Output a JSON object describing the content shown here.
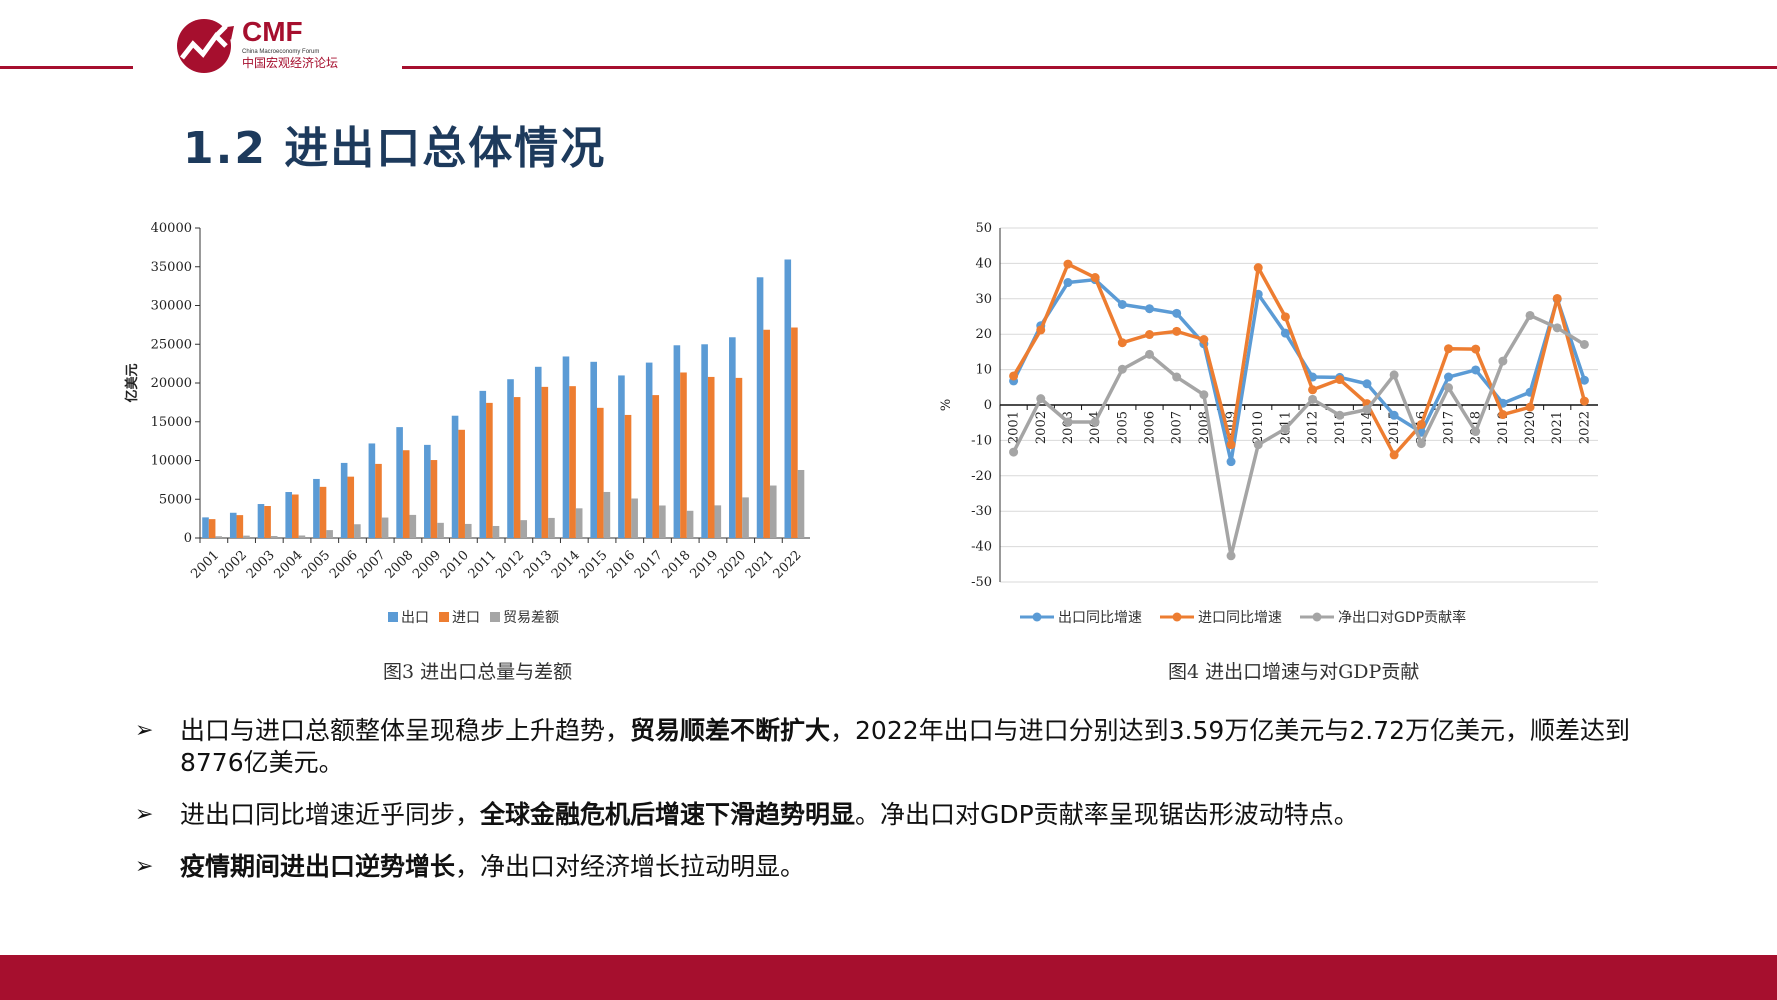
{
  "header": {
    "logo_text": "CMF",
    "logo_subtext": "China Macroeconomy Forum",
    "logo_cn": "中国宏观经济论坛"
  },
  "title": "1.2 进出口总体情况",
  "colors": {
    "brand": "#a60f2e",
    "title": "#1d3a5c",
    "export": "#5b9bd5",
    "import": "#ed7d31",
    "balance": "#a5a5a5"
  },
  "chart_data": [
    {
      "type": "bar",
      "ylabel": "亿美元",
      "ylim": [
        0,
        40000
      ],
      "yticks": [
        "0",
        "5000",
        "10000",
        "15000",
        "20000",
        "25000",
        "30000",
        "35000",
        "40000"
      ],
      "categories": [
        "2001",
        "2002",
        "2003",
        "2004",
        "2005",
        "2006",
        "2007",
        "2008",
        "2009",
        "2010",
        "2011",
        "2012",
        "2013",
        "2014",
        "2015",
        "2016",
        "2017",
        "2018",
        "2019",
        "2020",
        "2021",
        "2022"
      ],
      "series": [
        {
          "name": "出口",
          "color": "#5b9bd5",
          "values": [
            2661,
            3256,
            4382,
            5933,
            7620,
            9689,
            12200,
            14307,
            12016,
            15778,
            18984,
            20487,
            22090,
            23423,
            22735,
            20976,
            22633,
            24867,
            24995,
            25900,
            33640,
            35936
          ]
        },
        {
          "name": "进口",
          "color": "#ed7d31",
          "values": [
            2436,
            2952,
            4128,
            5612,
            6600,
            7915,
            9561,
            11326,
            10059,
            13962,
            17435,
            18184,
            19500,
            19592,
            16796,
            15879,
            18438,
            21357,
            20784,
            20660,
            26870,
            27160
          ]
        },
        {
          "name": "贸易差额",
          "color": "#a5a5a5",
          "values": [
            225,
            304,
            255,
            321,
            1020,
            1775,
            2639,
            2981,
            1957,
            1815,
            1549,
            2303,
            2590,
            3831,
            5939,
            5097,
            4195,
            3510,
            4211,
            5240,
            6770,
            8776
          ]
        }
      ],
      "legend": "bottom",
      "caption": "图3 进出口总量与差额"
    },
    {
      "type": "line",
      "ylabel": "%",
      "ylim": [
        -50,
        50
      ],
      "yticks": [
        "-50",
        "-40",
        "-30",
        "-20",
        "-10",
        "0",
        "10",
        "20",
        "30",
        "40",
        "50"
      ],
      "categories": [
        "2001",
        "2002",
        "2003",
        "2004",
        "2005",
        "2006",
        "2007",
        "2008",
        "2009",
        "2010",
        "2011",
        "2012",
        "2013",
        "2014",
        "2015",
        "2016",
        "2017",
        "2018",
        "2019",
        "2020",
        "2021",
        "2022"
      ],
      "series": [
        {
          "name": "出口同比增速",
          "color": "#5b9bd5",
          "values": [
            6.8,
            22.4,
            34.6,
            35.4,
            28.4,
            27.2,
            25.9,
            17.3,
            -16.0,
            31.3,
            20.3,
            7.9,
            7.8,
            6.0,
            -2.9,
            -7.7,
            7.9,
            9.9,
            0.5,
            3.6,
            29.9,
            7.0
          ]
        },
        {
          "name": "进口同比增速",
          "color": "#ed7d31",
          "values": [
            8.2,
            21.2,
            39.8,
            36.0,
            17.6,
            19.9,
            20.8,
            18.5,
            -11.2,
            38.8,
            24.9,
            4.3,
            7.2,
            0.4,
            -14.1,
            -5.5,
            15.9,
            15.8,
            -2.7,
            -0.6,
            30.1,
            1.1
          ]
        },
        {
          "name": "净出口对GDP贡献率",
          "color": "#a5a5a5",
          "values": [
            -13.3,
            1.8,
            -4.8,
            -4.8,
            10.1,
            14.3,
            7.9,
            2.9,
            -42.6,
            -11.2,
            -6.7,
            1.6,
            -2.9,
            -1.3,
            8.5,
            -10.9,
            4.9,
            -7.5,
            12.4,
            25.3,
            21.8,
            17.1
          ]
        }
      ],
      "legend": "bottom",
      "caption": "图4  进出口增速与对GDP贡献"
    }
  ],
  "bullets": [
    {
      "parts": [
        {
          "text": "出口与进口总额整体呈现稳步上升趋势，",
          "bold": false
        },
        {
          "text": "贸易顺差不断扩大",
          "bold": true
        },
        {
          "text": "，2022年出口与进口分别达到3.59万亿美元与2.72万亿美元，顺差达到8776亿美元。",
          "bold": false
        }
      ]
    },
    {
      "parts": [
        {
          "text": "进出口同比增速近乎同步，",
          "bold": false
        },
        {
          "text": "全球金融危机后增速下滑趋势明显",
          "bold": true
        },
        {
          "text": "。净出口对GDP贡献率呈现锯齿形波动特点。",
          "bold": false
        }
      ]
    },
    {
      "parts": [
        {
          "text": "疫情期间进出口逆势增长",
          "bold": true
        },
        {
          "text": "，净出口对经济增长拉动明显。",
          "bold": false
        }
      ]
    }
  ]
}
